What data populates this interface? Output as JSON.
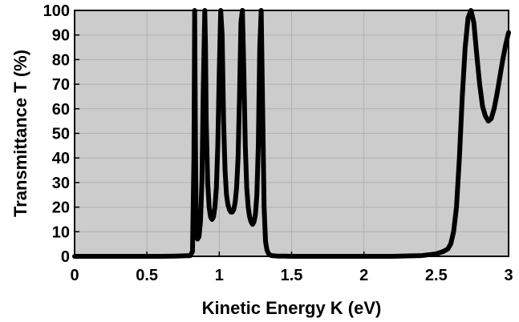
{
  "chart_data": {
    "type": "line",
    "title": "",
    "xlabel": "Kinetic Energy K (eV)",
    "ylabel": "Transmittance T (%)",
    "xlim": [
      0,
      3
    ],
    "ylim": [
      0,
      100
    ],
    "xticks": [
      "0",
      "0.5",
      "1",
      "1.5",
      "2",
      "2.5",
      "3"
    ],
    "yticks": [
      "0",
      "10",
      "20",
      "30",
      "40",
      "50",
      "60",
      "70",
      "80",
      "90",
      "100"
    ],
    "grid": true,
    "background_color": "#cccccc",
    "line_color": "#000000",
    "series": [
      {
        "x": [
          0,
          0.2,
          0.4,
          0.6,
          0.7,
          0.8,
          0.815,
          0.825,
          0.83,
          0.835,
          0.84,
          0.845,
          0.85,
          0.86,
          0.87,
          0.88,
          0.89,
          0.9,
          0.905,
          0.91,
          0.92,
          0.93,
          0.94,
          0.95,
          0.96,
          0.97,
          0.98,
          0.99,
          1.0,
          1.01,
          1.02,
          1.03,
          1.04,
          1.05,
          1.06,
          1.07,
          1.08,
          1.09,
          1.1,
          1.11,
          1.12,
          1.13,
          1.14,
          1.15,
          1.16,
          1.17,
          1.18,
          1.19,
          1.2,
          1.21,
          1.22,
          1.23,
          1.24,
          1.25,
          1.26,
          1.27,
          1.28,
          1.29,
          1.3,
          1.31,
          1.32,
          1.33,
          1.34,
          1.35,
          1.36,
          1.38,
          1.4,
          1.45,
          1.5,
          1.6,
          1.8,
          2.0,
          2.2,
          2.4,
          2.5,
          2.55,
          2.58,
          2.6,
          2.62,
          2.64,
          2.66,
          2.68,
          2.7,
          2.72,
          2.74,
          2.76,
          2.78,
          2.8,
          2.82,
          2.84,
          2.86,
          2.88,
          2.9,
          2.92,
          2.94,
          2.96,
          2.98,
          3.0
        ],
        "y": [
          0,
          0,
          0,
          0,
          0.1,
          0.3,
          2,
          40,
          100,
          50,
          15,
          8,
          7,
          8,
          14,
          30,
          70,
          100,
          85,
          55,
          30,
          20,
          16,
          15,
          16,
          20,
          28,
          45,
          75,
          100,
          90,
          55,
          35,
          25,
          21,
          19,
          18,
          18,
          19,
          22,
          28,
          40,
          65,
          95,
          100,
          75,
          45,
          28,
          20,
          16,
          14,
          13,
          14,
          17,
          25,
          45,
          85,
          100,
          60,
          20,
          6,
          2.5,
          1.2,
          0.6,
          0.3,
          0.2,
          0.1,
          0.1,
          0,
          0,
          0,
          0,
          0,
          0.3,
          1,
          2,
          3,
          5,
          10,
          20,
          40,
          65,
          85,
          97,
          100,
          95,
          82,
          70,
          61,
          57,
          55,
          56,
          60,
          66,
          73,
          80,
          86,
          91
        ]
      }
    ]
  }
}
